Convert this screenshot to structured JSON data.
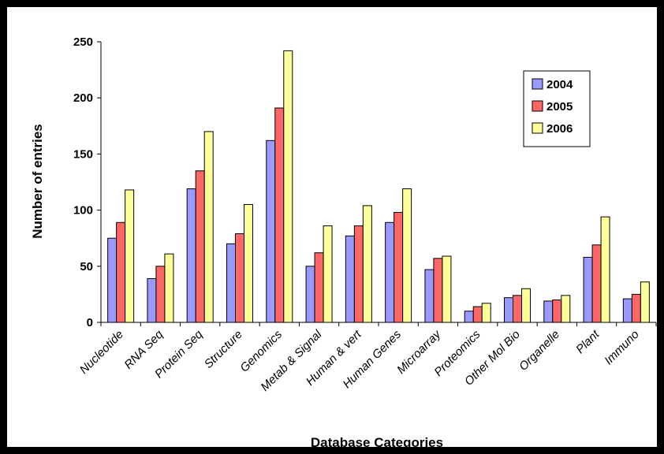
{
  "chart_data": {
    "type": "bar",
    "title": "",
    "xlabel": "Database Categories",
    "ylabel": "Number of entries",
    "ylim": [
      0,
      250
    ],
    "yticks": [
      0,
      50,
      100,
      150,
      200,
      250
    ],
    "grid": false,
    "legend_position": "top-right",
    "categories": [
      "Nucleotide",
      "RNA Seq",
      "Protein Seq",
      "Structure",
      "Genomics",
      "Metab & Signal",
      "Human & vert",
      "Human Genes",
      "Microarray",
      "Proteomics",
      "Other Mol Bio",
      "Organelle",
      "Plant",
      "Immuno"
    ],
    "series": [
      {
        "name": "2004",
        "color": "#9999ff",
        "values": [
          75,
          39,
          119,
          70,
          162,
          50,
          77,
          89,
          47,
          10,
          22,
          19,
          58,
          21
        ]
      },
      {
        "name": "2005",
        "color": "#ff6666",
        "values": [
          89,
          50,
          135,
          79,
          191,
          62,
          86,
          98,
          57,
          14,
          24,
          20,
          69,
          25
        ]
      },
      {
        "name": "2006",
        "color": "#ffff99",
        "values": [
          118,
          61,
          170,
          105,
          242,
          86,
          104,
          119,
          59,
          17,
          30,
          24,
          94,
          36
        ]
      }
    ]
  }
}
